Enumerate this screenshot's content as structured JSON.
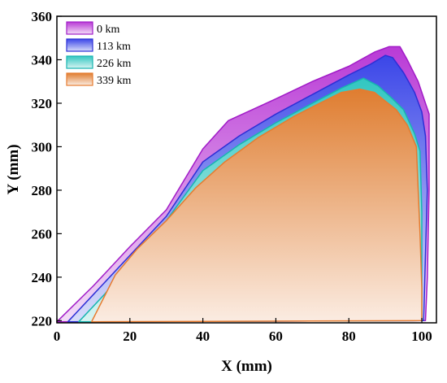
{
  "chart_data": {
    "type": "area",
    "xlabel": "X (mm)",
    "ylabel": "Y (mm)",
    "xlim": [
      0,
      104
    ],
    "ylim": [
      219,
      360
    ],
    "xticks": [
      0,
      20,
      40,
      60,
      80,
      100
    ],
    "yticks": [
      220,
      240,
      260,
      280,
      300,
      320,
      340,
      360
    ],
    "legend_position": "top-left",
    "grid": false,
    "series": [
      {
        "name": "0 km",
        "color": "#a11bc7",
        "fill_top": "#b93ad6",
        "fill_bottom": "#f3dcf7",
        "points": [
          [
            0,
            219.5
          ],
          [
            10,
            236
          ],
          [
            20,
            254
          ],
          [
            30,
            271
          ],
          [
            40,
            299
          ],
          [
            47,
            312
          ],
          [
            60,
            322
          ],
          [
            70,
            330
          ],
          [
            80,
            337
          ],
          [
            87,
            343.5
          ],
          [
            91,
            346
          ],
          [
            94,
            346
          ],
          [
            96,
            340
          ],
          [
            99,
            330
          ],
          [
            101,
            320
          ],
          [
            102,
            315
          ],
          [
            102,
            280
          ],
          [
            101.5,
            240
          ],
          [
            101,
            220
          ],
          [
            0,
            219.5
          ]
        ]
      },
      {
        "name": "113 km",
        "color": "#2d2fd6",
        "fill_top": "#3b46e8",
        "fill_bottom": "#d8dcfa",
        "points": [
          [
            3,
            219.5
          ],
          [
            10,
            232
          ],
          [
            20,
            250
          ],
          [
            30,
            268
          ],
          [
            40,
            293
          ],
          [
            50,
            305
          ],
          [
            60,
            315
          ],
          [
            70,
            324
          ],
          [
            80,
            333
          ],
          [
            86,
            338
          ],
          [
            90,
            342
          ],
          [
            92,
            341
          ],
          [
            95,
            334
          ],
          [
            98,
            325
          ],
          [
            100,
            316
          ],
          [
            101,
            305
          ],
          [
            101.5,
            280
          ],
          [
            101,
            250
          ],
          [
            100.5,
            220
          ],
          [
            3,
            219.5
          ]
        ]
      },
      {
        "name": "226 km",
        "color": "#17b5b0",
        "fill_top": "#32c7c1",
        "fill_bottom": "#d7f4f2",
        "points": [
          [
            6,
            219.5
          ],
          [
            13,
            232
          ],
          [
            20,
            246
          ],
          [
            30,
            266
          ],
          [
            40,
            289
          ],
          [
            50,
            301
          ],
          [
            60,
            311
          ],
          [
            70,
            320
          ],
          [
            78,
            327
          ],
          [
            84,
            331.5
          ],
          [
            88,
            328
          ],
          [
            92,
            322
          ],
          [
            95,
            317
          ],
          [
            98,
            306
          ],
          [
            99.5,
            298
          ],
          [
            100,
            270
          ],
          [
            100,
            240
          ],
          [
            100,
            220
          ],
          [
            6,
            219.5
          ]
        ]
      },
      {
        "name": "339 km",
        "color": "#e77b2f",
        "fill_top": "#df7d30",
        "fill_bottom": "#fbece2",
        "points": [
          [
            9.5,
            219.5
          ],
          [
            16,
            241
          ],
          [
            22,
            253
          ],
          [
            30,
            266
          ],
          [
            38,
            281
          ],
          [
            46,
            293
          ],
          [
            55,
            304
          ],
          [
            65,
            314
          ],
          [
            72,
            320
          ],
          [
            78,
            325
          ],
          [
            83,
            326.5
          ],
          [
            87,
            325
          ],
          [
            90,
            321
          ],
          [
            93,
            317
          ],
          [
            96,
            310
          ],
          [
            98.5,
            300
          ],
          [
            99.5,
            260
          ],
          [
            100,
            235
          ],
          [
            100,
            220
          ],
          [
            9.5,
            219.5
          ]
        ]
      }
    ]
  }
}
